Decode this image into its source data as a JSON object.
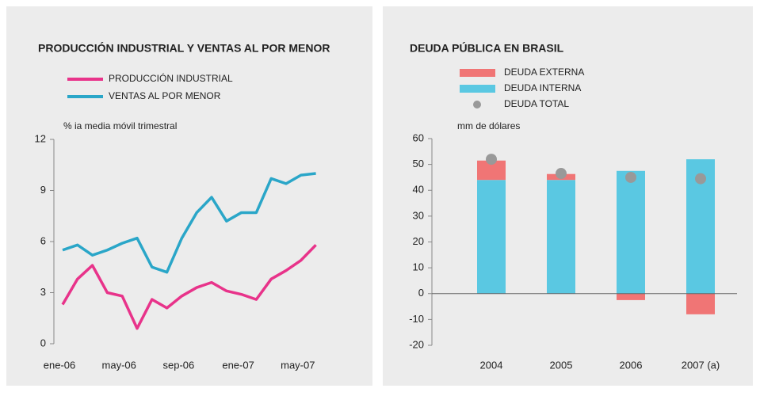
{
  "chart_data": [
    {
      "type": "line",
      "title": "PRODUCCIÓN INDUSTRIAL Y VENTAS AL POR MENOR",
      "y_label": "% ia media móvil trimestral",
      "categories": [
        "ene-06",
        null,
        null,
        null,
        "may-06",
        null,
        null,
        null,
        "sep-06",
        null,
        null,
        null,
        "ene-07",
        null,
        null,
        null,
        "may-07",
        null
      ],
      "series": [
        {
          "name": "PRODUCCIÓN INDUSTRIAL",
          "color": "#e8338a",
          "values": [
            2.3,
            3.8,
            4.6,
            3.0,
            2.8,
            0.9,
            2.6,
            2.1,
            2.8,
            3.3,
            3.6,
            3.1,
            2.9,
            2.6,
            3.8,
            4.3,
            4.9,
            5.8
          ]
        },
        {
          "name": "VENTAS AL POR MENOR",
          "color": "#2aa6c8",
          "values": [
            5.5,
            5.8,
            5.2,
            5.5,
            5.9,
            6.2,
            4.5,
            4.2,
            6.2,
            7.7,
            8.6,
            7.2,
            7.7,
            7.7,
            9.7,
            9.4,
            9.9,
            10.0
          ]
        }
      ],
      "ylim": [
        0,
        12
      ],
      "yticks": [
        0,
        3,
        6,
        9,
        12
      ]
    },
    {
      "type": "bar",
      "stacked": true,
      "title": "DEUDA PÚBLICA EN BRASIL",
      "y_label": "mm de dólares",
      "categories": [
        "2004",
        "2005",
        "2006",
        "2007 (a)"
      ],
      "series": [
        {
          "name": "DEUDA EXTERNA",
          "type": "bar",
          "color": "#f07575",
          "values": [
            7.5,
            2.3,
            -2.5,
            -8
          ]
        },
        {
          "name": "DEUDA INTERNA",
          "type": "bar",
          "color": "#5ac8e2",
          "values": [
            44,
            44,
            47.5,
            52
          ]
        },
        {
          "name": "DEUDA TOTAL",
          "type": "scatter",
          "color": "#999999",
          "values": [
            52,
            46.5,
            45,
            44.5
          ]
        }
      ],
      "ylim": [
        -20,
        60
      ],
      "yticks": [
        -20,
        -10,
        0,
        10,
        20,
        30,
        40,
        50,
        60
      ]
    }
  ]
}
